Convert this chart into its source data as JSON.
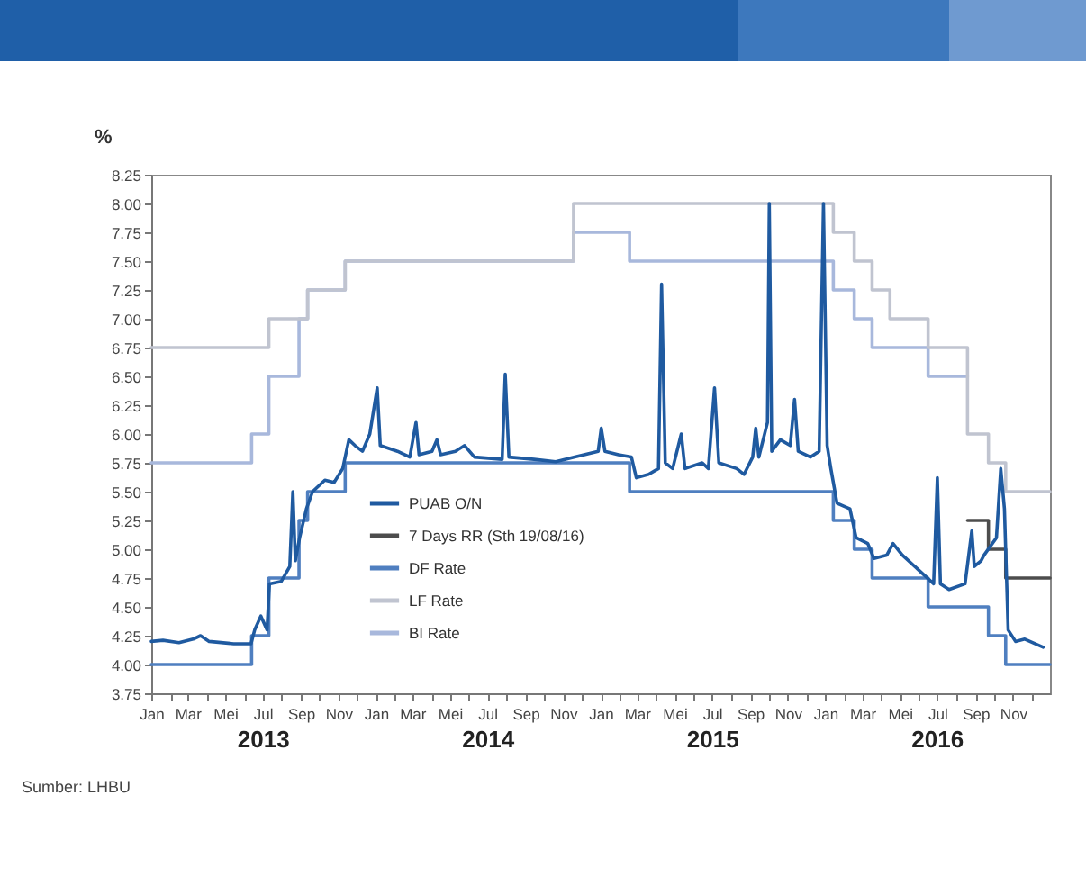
{
  "chart_data": {
    "type": "line",
    "ylabel": "%",
    "legend": "bottom left",
    "xlim": [
      "2013-01-01",
      "2016-12-31"
    ],
    "ylim": [
      3.75,
      8.25
    ],
    "yticks": [
      {
        "value": 3.75,
        "label": "3.75"
      },
      {
        "value": 4,
        "label": "4.00"
      },
      {
        "value": 4.25,
        "label": "4.25"
      },
      {
        "value": 4.5,
        "label": "4.50"
      },
      {
        "value": 4.75,
        "label": "4.75"
      },
      {
        "value": 5,
        "label": "5.00"
      },
      {
        "value": 5.25,
        "label": "5.25"
      },
      {
        "value": 5.5,
        "label": "5.50"
      },
      {
        "value": 5.75,
        "label": "5.75"
      },
      {
        "value": 6,
        "label": "6.00"
      },
      {
        "value": 6.25,
        "label": "6.25"
      },
      {
        "value": 6.5,
        "label": "6.50"
      },
      {
        "value": 6.75,
        "label": "6.75"
      },
      {
        "value": 7,
        "label": "7.00"
      },
      {
        "value": 7.25,
        "label": "7.25"
      },
      {
        "value": 7.5,
        "label": "7.50"
      },
      {
        "value": 7.75,
        "label": "7.75"
      },
      {
        "value": 8,
        "label": "8.00"
      },
      {
        "value": 8.25,
        "label": "8.25"
      }
    ],
    "xticks": [
      {
        "value": "2013-01-01",
        "label": "Jan"
      },
      {
        "value": "2013-02-01",
        "label": null
      },
      {
        "value": "2013-03-01",
        "label": "Mar"
      },
      {
        "value": "2013-04-01",
        "label": null
      },
      {
        "value": "2013-05-01",
        "label": "Mei"
      },
      {
        "value": "2013-06-01",
        "label": null
      },
      {
        "value": "2013-07-01",
        "label": "Jul"
      },
      {
        "value": "2013-08-01",
        "label": null
      },
      {
        "value": "2013-09-01",
        "label": "Sep"
      },
      {
        "value": "2013-10-01",
        "label": null
      },
      {
        "value": "2013-11-01",
        "label": "Nov"
      },
      {
        "value": "2013-12-01",
        "label": null
      },
      {
        "value": "2014-01-01",
        "label": "Jan"
      },
      {
        "value": "2014-02-01",
        "label": null
      },
      {
        "value": "2014-03-01",
        "label": "Mar"
      },
      {
        "value": "2014-04-01",
        "label": null
      },
      {
        "value": "2014-05-01",
        "label": "Mei"
      },
      {
        "value": "2014-06-01",
        "label": null
      },
      {
        "value": "2014-07-01",
        "label": "Jul"
      },
      {
        "value": "2014-08-01",
        "label": null
      },
      {
        "value": "2014-09-01",
        "label": "Sep"
      },
      {
        "value": "2014-10-01",
        "label": null
      },
      {
        "value": "2014-11-01",
        "label": "Nov"
      },
      {
        "value": "2014-12-01",
        "label": null
      },
      {
        "value": "2015-01-01",
        "label": "Jan"
      },
      {
        "value": "2015-02-01",
        "label": null
      },
      {
        "value": "2015-03-01",
        "label": "Mar"
      },
      {
        "value": "2015-04-01",
        "label": null
      },
      {
        "value": "2015-05-01",
        "label": "Mei"
      },
      {
        "value": "2015-06-01",
        "label": null
      },
      {
        "value": "2015-07-01",
        "label": "Jul"
      },
      {
        "value": "2015-08-01",
        "label": null
      },
      {
        "value": "2015-09-01",
        "label": "Sep"
      },
      {
        "value": "2015-10-01",
        "label": null
      },
      {
        "value": "2015-11-01",
        "label": "Nov"
      },
      {
        "value": "2015-12-01",
        "label": null
      },
      {
        "value": "2016-01-01",
        "label": "Jan"
      },
      {
        "value": "2016-02-01",
        "label": null
      },
      {
        "value": "2016-03-01",
        "label": "Mar"
      },
      {
        "value": "2016-04-01",
        "label": null
      },
      {
        "value": "2016-05-01",
        "label": "Mei"
      },
      {
        "value": "2016-06-01",
        "label": null
      },
      {
        "value": "2016-07-01",
        "label": "Jul"
      },
      {
        "value": "2016-08-01",
        "label": null
      },
      {
        "value": "2016-09-01",
        "label": "Sep"
      },
      {
        "value": "2016-10-01",
        "label": null
      },
      {
        "value": "2016-11-01",
        "label": "Nov"
      },
      {
        "value": "2016-12-01",
        "label": null
      }
    ],
    "series": [
      {
        "name": "PUAB O/N",
        "type": "line",
        "color": "#1f5aa0",
        "x": [
          "2013-01-01",
          "2013-01-20",
          "2013-02-15",
          "2013-03-10",
          "2013-03-22",
          "2013-04-05",
          "2013-05-15",
          "2013-06-12",
          "2013-06-18",
          "2013-06-28",
          "2013-07-08",
          "2013-07-12",
          "2013-07-31",
          "2013-08-14",
          "2013-08-19",
          "2013-08-23",
          "2013-08-30",
          "2013-09-10",
          "2013-09-20",
          "2013-10-10",
          "2013-10-25",
          "2013-11-08",
          "2013-11-18",
          "2013-11-28",
          "2013-12-10",
          "2013-12-22",
          "2014-01-03",
          "2014-01-08",
          "2014-02-05",
          "2014-02-25",
          "2014-03-07",
          "2014-03-12",
          "2014-04-02",
          "2014-04-10",
          "2014-04-16",
          "2014-05-10",
          "2014-05-25",
          "2014-06-10",
          "2014-07-25",
          "2014-07-30",
          "2014-08-05",
          "2014-09-15",
          "2014-10-20",
          "2014-11-20",
          "2014-12-28",
          "2015-01-02",
          "2015-01-08",
          "2015-01-30",
          "2015-02-20",
          "2015-02-28",
          "2015-03-20",
          "2015-04-05",
          "2015-04-10",
          "2015-04-16",
          "2015-04-28",
          "2015-05-12",
          "2015-05-18",
          "2015-06-15",
          "2015-06-25",
          "2015-07-05",
          "2015-07-12",
          "2015-08-10",
          "2015-08-22",
          "2015-09-05",
          "2015-09-10",
          "2015-09-15",
          "2015-09-29",
          "2015-10-02",
          "2015-10-06",
          "2015-10-20",
          "2015-11-05",
          "2015-11-12",
          "2015-11-18",
          "2015-12-08",
          "2015-12-22",
          "2015-12-29",
          "2016-01-04",
          "2016-01-10",
          "2016-01-20",
          "2016-02-10",
          "2016-02-20",
          "2016-03-10",
          "2016-03-20",
          "2016-04-10",
          "2016-04-20",
          "2016-05-05",
          "2016-06-25",
          "2016-07-01",
          "2016-07-06",
          "2016-07-20",
          "2016-08-15",
          "2016-08-26",
          "2016-08-30",
          "2016-09-10",
          "2016-09-15",
          "2016-10-05",
          "2016-10-12",
          "2016-10-18",
          "2016-10-24",
          "2016-11-05",
          "2016-11-20",
          "2016-12-20"
        ],
        "values": [
          4.2,
          4.21,
          4.19,
          4.22,
          4.25,
          4.2,
          4.18,
          4.18,
          4.3,
          4.42,
          4.3,
          4.7,
          4.72,
          4.85,
          5.5,
          4.9,
          5.1,
          5.35,
          5.5,
          5.6,
          5.58,
          5.7,
          5.95,
          5.9,
          5.85,
          6.0,
          6.4,
          5.9,
          5.85,
          5.8,
          6.1,
          5.82,
          5.85,
          5.95,
          5.82,
          5.85,
          5.9,
          5.8,
          5.78,
          6.52,
          5.8,
          5.78,
          5.76,
          5.8,
          5.85,
          6.05,
          5.85,
          5.82,
          5.8,
          5.62,
          5.65,
          5.7,
          7.3,
          5.75,
          5.7,
          6.0,
          5.7,
          5.75,
          5.7,
          6.4,
          5.75,
          5.7,
          5.65,
          5.8,
          6.05,
          5.8,
          6.1,
          8.0,
          5.85,
          5.95,
          5.9,
          6.3,
          5.85,
          5.8,
          5.85,
          8.0,
          5.9,
          5.7,
          5.4,
          5.35,
          5.1,
          5.05,
          4.92,
          4.95,
          5.05,
          4.95,
          4.7,
          5.62,
          4.7,
          4.65,
          4.7,
          5.16,
          4.85,
          4.9,
          4.95,
          5.1,
          5.7,
          5.35,
          4.3,
          4.2,
          4.22,
          4.15
        ]
      },
      {
        "name": "7 Days RR (Sth 19/08/16)",
        "type": "step",
        "color": "#4d4d4d",
        "x": [
          "2016-08-19",
          "2016-09-22",
          "2016-10-20",
          "2016-12-31"
        ],
        "values": [
          5.25,
          5.0,
          4.75,
          4.75
        ]
      },
      {
        "name": "DF Rate",
        "type": "step",
        "color": "#4f7fc0",
        "x": [
          "2013-01-01",
          "2013-06-13",
          "2013-07-11",
          "2013-08-29",
          "2013-09-12",
          "2013-11-12",
          "2015-02-17",
          "2016-01-14",
          "2016-02-17",
          "2016-03-17",
          "2016-06-16",
          "2016-09-22",
          "2016-10-20",
          "2016-12-31"
        ],
        "values": [
          4.0,
          4.25,
          4.75,
          5.25,
          5.5,
          5.75,
          5.5,
          5.25,
          5.0,
          4.75,
          4.5,
          4.25,
          4.0,
          4.0
        ]
      },
      {
        "name": "LF Rate",
        "type": "step",
        "color": "#c0c4d0",
        "x": [
          "2013-01-01",
          "2013-07-11",
          "2013-09-12",
          "2013-11-12",
          "2014-11-18",
          "2016-01-14",
          "2016-02-17",
          "2016-03-17",
          "2016-04-15",
          "2016-06-16",
          "2016-08-19",
          "2016-09-22",
          "2016-10-20",
          "2016-12-31"
        ],
        "values": [
          6.75,
          7.0,
          7.25,
          7.5,
          8.0,
          7.75,
          7.5,
          7.25,
          7.0,
          6.75,
          6.0,
          5.75,
          5.5,
          5.5
        ]
      },
      {
        "name": "BI Rate",
        "type": "step",
        "color": "#a8b8dc",
        "x": [
          "2013-01-01",
          "2013-06-13",
          "2013-07-11",
          "2013-08-29",
          "2013-09-12",
          "2013-11-12",
          "2014-11-18",
          "2015-02-17",
          "2016-01-14",
          "2016-02-17",
          "2016-03-17",
          "2016-06-16",
          "2016-08-19"
        ],
        "values": [
          5.75,
          6.0,
          6.5,
          7.0,
          7.25,
          7.5,
          7.75,
          7.5,
          7.25,
          7.0,
          6.75,
          6.5,
          6.5
        ]
      }
    ],
    "annotations": [
      "2013",
      "2014",
      "2015",
      "2016",
      "Sumber: LHBU"
    ]
  }
}
